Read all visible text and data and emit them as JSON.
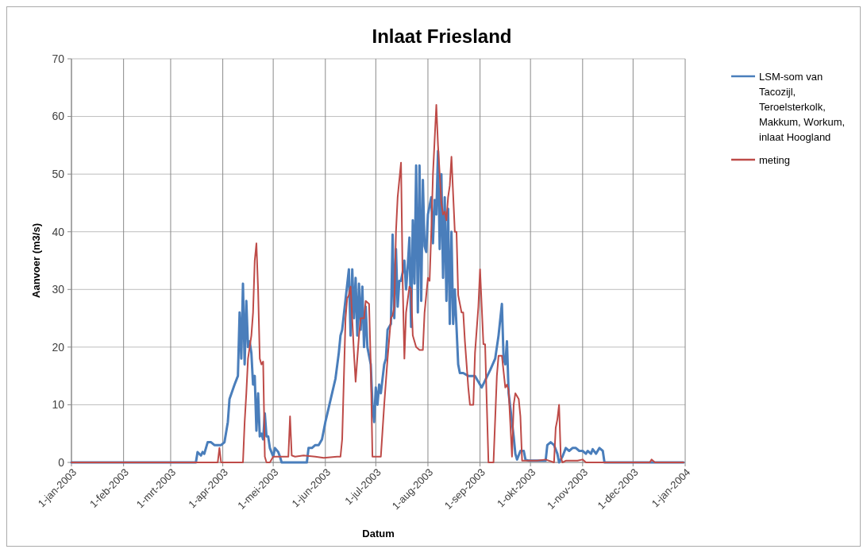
{
  "chart_data": {
    "type": "line",
    "title": "Inlaat Friesland",
    "xlabel": "Datum",
    "ylabel": "Aanvoer (m3/s)",
    "xlim": [
      "2003-01-01",
      "2004-01-01"
    ],
    "xticks": [
      {
        "value": "2003-01-01",
        "label": "1-jan-2003"
      },
      {
        "value": "2003-02-01",
        "label": "1-feb-2003"
      },
      {
        "value": "2003-03-01",
        "label": "1-mrt-2003"
      },
      {
        "value": "2003-04-01",
        "label": "1-apr-2003"
      },
      {
        "value": "2003-05-01",
        "label": "1-mei-2003"
      },
      {
        "value": "2003-06-01",
        "label": "1-jun-2003"
      },
      {
        "value": "2003-07-01",
        "label": "1-jul-2003"
      },
      {
        "value": "2003-08-01",
        "label": "1-aug-2003"
      },
      {
        "value": "2003-09-01",
        "label": "1-sep-2003"
      },
      {
        "value": "2003-10-01",
        "label": "1-okt-2003"
      },
      {
        "value": "2003-11-01",
        "label": "1-nov-2003"
      },
      {
        "value": "2003-12-01",
        "label": "1-dec-2003"
      },
      {
        "value": "2004-01-01",
        "label": "1-jan-2004"
      }
    ],
    "ylim": [
      0,
      70
    ],
    "yticks": [
      0,
      10,
      20,
      30,
      40,
      50,
      60,
      70
    ],
    "grid": true,
    "legend": "top right",
    "line_style": "solid",
    "marker": "none",
    "series": [
      {
        "name": "LSM-som van Tacozijl, Teroelsterkolk, Makkum, Workum, inlaat Hoogland",
        "color": "#4a7ebb",
        "x": [
          "2003-01-01",
          "2003-03-16",
          "2003-03-17",
          "2003-03-19",
          "2003-03-20",
          "2003-03-21",
          "2003-03-23",
          "2003-03-25",
          "2003-03-27",
          "2003-03-31",
          "2003-04-02",
          "2003-04-04",
          "2003-04-05",
          "2003-04-08",
          "2003-04-10",
          "2003-04-11",
          "2003-04-12",
          "2003-04-13",
          "2003-04-14",
          "2003-04-15",
          "2003-04-16",
          "2003-04-17",
          "2003-04-18",
          "2003-04-19",
          "2003-04-20",
          "2003-04-21",
          "2003-04-22",
          "2003-04-23",
          "2003-04-24",
          "2003-04-25",
          "2003-04-26",
          "2003-04-27",
          "2003-04-28",
          "2003-04-29",
          "2003-05-01",
          "2003-05-02",
          "2003-05-04",
          "2003-05-05",
          "2003-05-06",
          "2003-05-21",
          "2003-05-22",
          "2003-05-24",
          "2003-05-26",
          "2003-05-28",
          "2003-05-30",
          "2003-06-01",
          "2003-06-03",
          "2003-06-05",
          "2003-06-07",
          "2003-06-09",
          "2003-06-10",
          "2003-06-11",
          "2003-06-15",
          "2003-06-16",
          "2003-06-17",
          "2003-06-18",
          "2003-06-19",
          "2003-06-20",
          "2003-06-21",
          "2003-06-22",
          "2003-06-23",
          "2003-06-24",
          "2003-06-25",
          "2003-06-26",
          "2003-06-28",
          "2003-06-29",
          "2003-06-30",
          "2003-07-01",
          "2003-07-02",
          "2003-07-03",
          "2003-07-04",
          "2003-07-06",
          "2003-07-07",
          "2003-07-08",
          "2003-07-10",
          "2003-07-11",
          "2003-07-12",
          "2003-07-13",
          "2003-07-14",
          "2003-07-15",
          "2003-07-16",
          "2003-07-17",
          "2003-07-18",
          "2003-07-19",
          "2003-07-20",
          "2003-07-21",
          "2003-07-22",
          "2003-07-23",
          "2003-07-24",
          "2003-07-25",
          "2003-07-26",
          "2003-07-27",
          "2003-07-28",
          "2003-07-29",
          "2003-07-30",
          "2003-07-31",
          "2003-08-01",
          "2003-08-02",
          "2003-08-03",
          "2003-08-04",
          "2003-08-05",
          "2003-08-06",
          "2003-08-07",
          "2003-08-08",
          "2003-08-09",
          "2003-08-10",
          "2003-08-11",
          "2003-08-12",
          "2003-08-13",
          "2003-08-14",
          "2003-08-15",
          "2003-08-16",
          "2003-08-17",
          "2003-08-18",
          "2003-08-19",
          "2003-08-20",
          "2003-08-22",
          "2003-08-25",
          "2003-08-29",
          "2003-08-31",
          "2003-09-02",
          "2003-09-07",
          "2003-09-10",
          "2003-09-12",
          "2003-09-14",
          "2003-09-15",
          "2003-09-16",
          "2003-09-17",
          "2003-09-18",
          "2003-09-21",
          "2003-09-22",
          "2003-09-23",
          "2003-09-25",
          "2003-09-27",
          "2003-09-28",
          "2003-09-30",
          "2003-10-10",
          "2003-10-11",
          "2003-10-13",
          "2003-10-15",
          "2003-10-17",
          "2003-10-18",
          "2003-10-20",
          "2003-10-22",
          "2003-10-24",
          "2003-10-26",
          "2003-10-28",
          "2003-10-30",
          "2003-11-01",
          "2003-11-03",
          "2003-11-04",
          "2003-11-06",
          "2003-11-07",
          "2003-11-09",
          "2003-11-11",
          "2003-11-13",
          "2003-11-14",
          "2003-12-31"
        ],
        "values": [
          0,
          0,
          1.8,
          1.2,
          1.8,
          1.5,
          3.5,
          3.5,
          3,
          3,
          3.5,
          7,
          11,
          13.5,
          15,
          26,
          18,
          31,
          17,
          28,
          20,
          21,
          19,
          13.5,
          15,
          5.5,
          12,
          4.5,
          5,
          4,
          8.5,
          4.5,
          4.5,
          2.5,
          1,
          2.5,
          1.8,
          1,
          0,
          0,
          2.5,
          2.5,
          3,
          3,
          4,
          7,
          9.5,
          12,
          14.5,
          19,
          22,
          23,
          33.5,
          22,
          33.5,
          25,
          32,
          22,
          31,
          23,
          30.5,
          20,
          27,
          20,
          17,
          10,
          7,
          13,
          10,
          13.5,
          12,
          17,
          18,
          23,
          24,
          39.5,
          25,
          37,
          27,
          31.5,
          31.5,
          33,
          35,
          30,
          34,
          39,
          23.5,
          42,
          31,
          51.5,
          26,
          51.5,
          28,
          49,
          37.5,
          36.5,
          43,
          44.5,
          46,
          38,
          45.5,
          43,
          54,
          37,
          50,
          32,
          46,
          28,
          44,
          24,
          40,
          24,
          30,
          23.5,
          17,
          15.5,
          15.5,
          15,
          15,
          14,
          13,
          16,
          18,
          22,
          27.5,
          18,
          17,
          21,
          12,
          4.5,
          1.5,
          0.5,
          2,
          2,
          0.5,
          0.3,
          0.3,
          3,
          3.5,
          3,
          1.5,
          0,
          1,
          2.5,
          2,
          2.5,
          2.5,
          2,
          2,
          1.5,
          2,
          1.5,
          2.3,
          1.5,
          2.5,
          2,
          0,
          0
        ]
      },
      {
        "name": "meting",
        "color": "#be4b48",
        "x": [
          "2003-01-01",
          "2003-03-29",
          "2003-03-30",
          "2003-03-31",
          "2003-04-13",
          "2003-04-14",
          "2003-04-15",
          "2003-04-16",
          "2003-04-17",
          "2003-04-18",
          "2003-04-19",
          "2003-04-20",
          "2003-04-21",
          "2003-04-22",
          "2003-04-23",
          "2003-04-24",
          "2003-04-25",
          "2003-04-26",
          "2003-04-27",
          "2003-04-29",
          "2003-05-01",
          "2003-05-04",
          "2003-05-10",
          "2003-05-11",
          "2003-05-12",
          "2003-05-14",
          "2003-05-19",
          "2003-05-26",
          "2003-05-31",
          "2003-06-08",
          "2003-06-10",
          "2003-06-11",
          "2003-06-13",
          "2003-06-14",
          "2003-06-15",
          "2003-06-16",
          "2003-06-18",
          "2003-06-19",
          "2003-06-21",
          "2003-06-22",
          "2003-06-24",
          "2003-06-25",
          "2003-06-27",
          "2003-06-28",
          "2003-06-29",
          "2003-07-03",
          "2003-07-04",
          "2003-07-06",
          "2003-07-08",
          "2003-07-10",
          "2003-07-11",
          "2003-07-12",
          "2003-07-13",
          "2003-07-14",
          "2003-07-16",
          "2003-07-17",
          "2003-07-18",
          "2003-07-19",
          "2003-07-21",
          "2003-07-22",
          "2003-07-23",
          "2003-07-25",
          "2003-07-27",
          "2003-07-29",
          "2003-07-30",
          "2003-08-01",
          "2003-08-02",
          "2003-08-03",
          "2003-08-04",
          "2003-08-06",
          "2003-08-07",
          "2003-08-09",
          "2003-08-10",
          "2003-08-11",
          "2003-08-12",
          "2003-08-13",
          "2003-08-14",
          "2003-08-15",
          "2003-08-17",
          "2003-08-18",
          "2003-08-19",
          "2003-08-21",
          "2003-08-22",
          "2003-08-23",
          "2003-08-25",
          "2003-08-26",
          "2003-08-28",
          "2003-08-29",
          "2003-08-31",
          "2003-09-01",
          "2003-09-02",
          "2003-09-03",
          "2003-09-04",
          "2003-09-06",
          "2003-09-09",
          "2003-09-11",
          "2003-09-12",
          "2003-09-14",
          "2003-09-16",
          "2003-09-17",
          "2003-09-18",
          "2003-09-20",
          "2003-09-21",
          "2003-09-22",
          "2003-09-24",
          "2003-09-25",
          "2003-09-26",
          "2003-10-05",
          "2003-10-10",
          "2003-10-15",
          "2003-10-16",
          "2003-10-17",
          "2003-10-18",
          "2003-10-19",
          "2003-10-20",
          "2003-10-22",
          "2003-10-29",
          "2003-11-01",
          "2003-11-03",
          "2003-12-11",
          "2003-12-12",
          "2003-12-14",
          "2003-12-31"
        ],
        "values": [
          0,
          0,
          2.5,
          0,
          0,
          7,
          12,
          18,
          20,
          22,
          26,
          35,
          38,
          30,
          18,
          17,
          17.5,
          1,
          0,
          0,
          1,
          1,
          1,
          8,
          1.2,
          1,
          1.2,
          1,
          0.8,
          1,
          1,
          4,
          25,
          28.5,
          29,
          30.5,
          19,
          14,
          22,
          25,
          25,
          28,
          27.5,
          17,
          1,
          1,
          1,
          10,
          18,
          25,
          25.5,
          27,
          40,
          46,
          52,
          31,
          18,
          26,
          30.5,
          30,
          22,
          20,
          19.5,
          19.5,
          26,
          32,
          31.5,
          40,
          50,
          62,
          55,
          45,
          43,
          43.5,
          42,
          46,
          48,
          53,
          40,
          40,
          29,
          26,
          26,
          21,
          13,
          10,
          10,
          19,
          27,
          33.5,
          27,
          20.5,
          20.5,
          0,
          0,
          15,
          18.5,
          18.5,
          13,
          13.5,
          12.5,
          1,
          10,
          12,
          11,
          8,
          0.3,
          0.3,
          0.5,
          0,
          6,
          7.5,
          10,
          1,
          0,
          0.3,
          0.3,
          0.5,
          0,
          0,
          0.5,
          0,
          0
        ]
      }
    ]
  }
}
